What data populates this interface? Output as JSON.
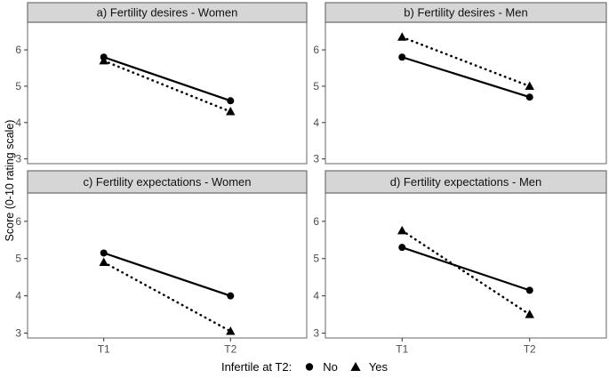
{
  "chart_data": {
    "type": "line",
    "x_categories": [
      "T1",
      "T2"
    ],
    "ylabel": "Score (0-10 rating scale)",
    "y_ticks": [
      3,
      4,
      5,
      6
    ],
    "ylim": [
      2.87,
      6.76
    ],
    "grid": false,
    "legend_position": "bottom",
    "legend": {
      "title": "Infertile at T2:",
      "items": [
        {
          "label": "No",
          "marker": "circle",
          "line": "solid"
        },
        {
          "label": "Yes",
          "marker": "triangle",
          "line": "dotted"
        }
      ]
    },
    "facets": [
      {
        "title": "a) Fertility desires - Women",
        "series": [
          {
            "name": "No",
            "marker": "circle",
            "line": "solid",
            "values": [
              5.8,
              4.6
            ]
          },
          {
            "name": "Yes",
            "marker": "triangle",
            "line": "dotted",
            "values": [
              5.7,
              4.3
            ]
          }
        ]
      },
      {
        "title": "b) Fertility desires - Men",
        "series": [
          {
            "name": "No",
            "marker": "circle",
            "line": "solid",
            "values": [
              5.8,
              4.7
            ]
          },
          {
            "name": "Yes",
            "marker": "triangle",
            "line": "dotted",
            "values": [
              6.35,
              5.0
            ]
          }
        ]
      },
      {
        "title": "c) Fertility expectations - Women",
        "series": [
          {
            "name": "No",
            "marker": "circle",
            "line": "solid",
            "values": [
              5.15,
              4.0
            ]
          },
          {
            "name": "Yes",
            "marker": "triangle",
            "line": "dotted",
            "values": [
              4.9,
              3.05
            ]
          }
        ]
      },
      {
        "title": "d) Fertility expectations - Men",
        "series": [
          {
            "name": "No",
            "marker": "circle",
            "line": "solid",
            "values": [
              5.3,
              4.15
            ]
          },
          {
            "name": "Yes",
            "marker": "triangle",
            "line": "dotted",
            "values": [
              5.75,
              3.5
            ]
          }
        ]
      }
    ],
    "colors": {
      "series": "#000000",
      "tick_label": "#4d4d4d",
      "strip_bg": "#d6d6d6",
      "strip_border": "#6f6f6f",
      "panel_border": "#7f7f7f",
      "panel_bg": "#ffffff"
    }
  }
}
